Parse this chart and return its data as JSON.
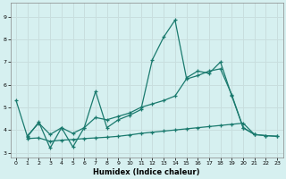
{
  "xlabel": "Humidex (Indice chaleur)",
  "background_color": "#d6f0f0",
  "grid_color": "#c8dede",
  "line_color": "#1a7a6e",
  "xlim": [
    -0.5,
    23.5
  ],
  "ylim": [
    2.8,
    9.6
  ],
  "yticks": [
    3,
    4,
    5,
    6,
    7,
    8,
    9
  ],
  "xticks": [
    0,
    1,
    2,
    3,
    4,
    5,
    6,
    7,
    8,
    9,
    10,
    11,
    12,
    13,
    14,
    15,
    16,
    17,
    18,
    19,
    20,
    21,
    22,
    23
  ],
  "line1_x": [
    0,
    1,
    2,
    3,
    4,
    5,
    6,
    7,
    8,
    9,
    10,
    11,
    12,
    13,
    14,
    15,
    16,
    17,
    18,
    19,
    20,
    21
  ],
  "line1_y": [
    5.3,
    3.7,
    4.35,
    3.2,
    4.1,
    3.25,
    4.1,
    5.7,
    4.1,
    4.45,
    4.65,
    4.9,
    7.1,
    8.1,
    8.85,
    6.3,
    6.6,
    6.5,
    7.0,
    5.5,
    4.1,
    3.8
  ],
  "line2_x": [
    1,
    2,
    3,
    4,
    5,
    6,
    7,
    8,
    9,
    10,
    11,
    12,
    13,
    14,
    15,
    16,
    17,
    18,
    19,
    20,
    21,
    22,
    23
  ],
  "line2_y": [
    3.75,
    4.3,
    3.8,
    4.1,
    3.85,
    4.1,
    4.55,
    4.45,
    4.6,
    4.75,
    5.0,
    5.15,
    5.3,
    5.5,
    6.25,
    6.4,
    6.6,
    6.7,
    5.55,
    4.1,
    3.8,
    3.75,
    3.72
  ],
  "line3_x": [
    1,
    2,
    3,
    4,
    5,
    6,
    7,
    8,
    9,
    10,
    11,
    12,
    13,
    14,
    15,
    16,
    17,
    18,
    19,
    20,
    21,
    22,
    23
  ],
  "line3_y": [
    3.62,
    3.65,
    3.5,
    3.55,
    3.58,
    3.62,
    3.65,
    3.68,
    3.72,
    3.78,
    3.85,
    3.9,
    3.95,
    4.0,
    4.05,
    4.1,
    4.15,
    4.2,
    4.25,
    4.3,
    3.8,
    3.75,
    3.72
  ]
}
